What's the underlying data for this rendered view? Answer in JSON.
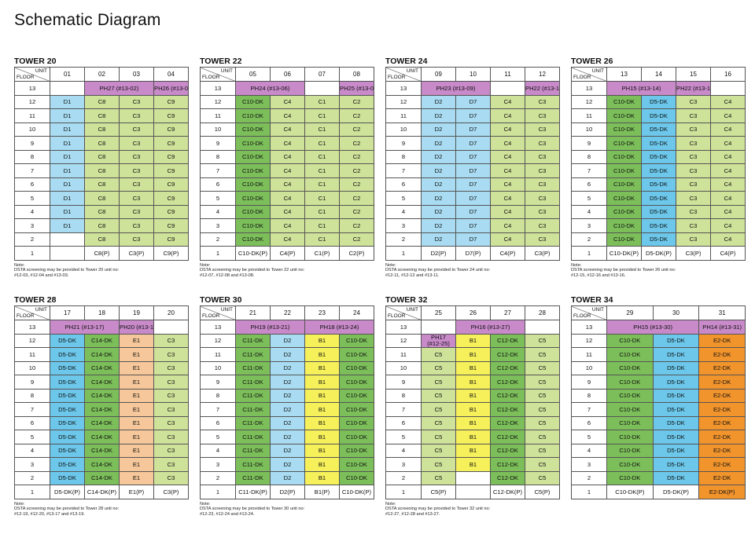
{
  "page_title": "Schematic Diagram",
  "labels": {
    "unit": "UNIT",
    "floor": "FLOOR"
  },
  "palette": {
    "green": "#cfe29a",
    "dgreen": "#7cbf5a",
    "blue": "#6cc7ea",
    "lblue": "#a9dcf2",
    "purple": "#c88ac9",
    "yellow": "#f6f05a",
    "peach": "#f6c79a",
    "orange": "#f2942c",
    "white": "#ffffff"
  },
  "towers": [
    {
      "title": "TOWER 20",
      "units": [
        "01",
        "02",
        "03",
        "04"
      ],
      "row13": [
        {
          "text": "",
          "span": 1,
          "color": "white"
        },
        {
          "text": "PH27 (#13-02)",
          "span": 2,
          "color": "purple"
        },
        {
          "text": "PH26 (#13-03)",
          "span": 1,
          "color": "purple"
        }
      ],
      "mid_colors": [
        "lblue",
        "green",
        "green",
        "green"
      ],
      "mid_text": [
        "D1",
        "C8",
        "C3",
        "C9"
      ],
      "row2": [
        {
          "text": "",
          "color": "white"
        },
        {
          "text": "C8",
          "color": "green"
        },
        {
          "text": "C3",
          "color": "green"
        },
        {
          "text": "C9",
          "color": "green"
        }
      ],
      "row1": [
        {
          "text": "",
          "color": "white"
        },
        {
          "text": "C8(P)",
          "color": "white"
        },
        {
          "text": "C3(P)",
          "color": "white"
        },
        {
          "text": "C9(P)",
          "color": "white"
        }
      ],
      "note": [
        "Note:",
        "DSTA screening may be provided to Tower 20 unit no:",
        "#12-03, #12-04 and #13-03."
      ]
    },
    {
      "title": "TOWER 22",
      "units": [
        "05",
        "06",
        "07",
        "08"
      ],
      "row13": [
        {
          "text": "PH24 (#13-06)",
          "span": 2,
          "color": "purple"
        },
        {
          "text": "",
          "span": 1,
          "color": "white"
        },
        {
          "text": "PH25 (#13-08)",
          "span": 1,
          "color": "purple"
        }
      ],
      "mid_colors": [
        "dgreen",
        "green",
        "green",
        "green"
      ],
      "mid_text": [
        "C10-DK",
        "C4",
        "C1",
        "C2"
      ],
      "row2": [
        {
          "text": "C10-DK",
          "color": "dgreen"
        },
        {
          "text": "C4",
          "color": "green"
        },
        {
          "text": "C1",
          "color": "green"
        },
        {
          "text": "C2",
          "color": "green"
        }
      ],
      "row1": [
        {
          "text": "C10-DK(P)",
          "color": "white"
        },
        {
          "text": "C4(P)",
          "color": "white"
        },
        {
          "text": "C1(P)",
          "color": "white"
        },
        {
          "text": "C2(P)",
          "color": "white"
        }
      ],
      "note": [
        "Note:",
        "DSTA screening may be provided to Tower 22 unit no:",
        "#12-07, #12-08 and #13-08."
      ]
    },
    {
      "title": "TOWER 24",
      "units": [
        "09",
        "10",
        "11",
        "12"
      ],
      "row13": [
        {
          "text": "PH23 (#13-09)",
          "span": 2,
          "color": "purple"
        },
        {
          "text": "",
          "span": 1,
          "color": "white"
        },
        {
          "text": "PH22 (#13-11)",
          "span": 1,
          "color": "purple"
        }
      ],
      "mid_colors": [
        "lblue",
        "lblue",
        "green",
        "green"
      ],
      "mid_text": [
        "D2",
        "D7",
        "C4",
        "C3"
      ],
      "row2": [
        {
          "text": "D2",
          "color": "lblue"
        },
        {
          "text": "D7",
          "color": "lblue"
        },
        {
          "text": "C4",
          "color": "green"
        },
        {
          "text": "C3",
          "color": "green"
        }
      ],
      "row1": [
        {
          "text": "D2(P)",
          "color": "white"
        },
        {
          "text": "D7(P)",
          "color": "white"
        },
        {
          "text": "C4(P)",
          "color": "white"
        },
        {
          "text": "C3(P)",
          "color": "white"
        }
      ],
      "note": [
        "Note:",
        "DSTA screening may be provided to Tower 24 unit no:",
        "#12-11, #12-12 and #13-11."
      ]
    },
    {
      "title": "TOWER 26",
      "units": [
        "13",
        "14",
        "15",
        "16"
      ],
      "row13": [
        {
          "text": "PH15 (#13-14)",
          "span": 2,
          "color": "purple"
        },
        {
          "text": "PH22 (#13-16)",
          "span": 1,
          "color": "purple"
        },
        {
          "text": "",
          "span": 1,
          "color": "white"
        }
      ],
      "mid_colors": [
        "dgreen",
        "blue",
        "green",
        "green"
      ],
      "mid_text": [
        "C10-DK",
        "D5-DK",
        "C3",
        "C4"
      ],
      "row2": [
        {
          "text": "C10-DK",
          "color": "dgreen"
        },
        {
          "text": "D5-DK",
          "color": "blue"
        },
        {
          "text": "C3",
          "color": "green"
        },
        {
          "text": "C4",
          "color": "green"
        }
      ],
      "row1": [
        {
          "text": "C10-DK(P)",
          "color": "white"
        },
        {
          "text": "D5-DK(P)",
          "color": "white"
        },
        {
          "text": "C3(P)",
          "color": "white"
        },
        {
          "text": "C4(P)",
          "color": "white"
        }
      ],
      "note": [
        "Note:",
        "DSTA screening may be provided to Tower 26 unit no:",
        "#12-15, #12-16 and #13-16."
      ]
    },
    {
      "title": "TOWER 28",
      "units": [
        "17",
        "18",
        "19",
        "20"
      ],
      "row13": [
        {
          "text": "PH21 (#13-17)",
          "span": 2,
          "color": "purple"
        },
        {
          "text": "PH20 (#13-19)",
          "span": 1,
          "color": "purple"
        },
        {
          "text": "",
          "span": 1,
          "color": "white"
        }
      ],
      "mid_colors": [
        "blue",
        "dgreen",
        "peach",
        "green"
      ],
      "mid_text": [
        "D5-DK",
        "C14-DK",
        "E1",
        "C3"
      ],
      "row2": [
        {
          "text": "D5-DK",
          "color": "blue"
        },
        {
          "text": "C14-DK",
          "color": "dgreen"
        },
        {
          "text": "E1",
          "color": "peach"
        },
        {
          "text": "C3",
          "color": "green"
        }
      ],
      "row1": [
        {
          "text": "D5-DK(P)",
          "color": "white"
        },
        {
          "text": "C14-DK(P)",
          "color": "white"
        },
        {
          "text": "E1(P)",
          "color": "white"
        },
        {
          "text": "C3(P)",
          "color": "white"
        }
      ],
      "note": [
        "Note:",
        "DSTA screening may be provided to Tower 28 unit no:",
        "#12-19, #12-20, #13-17 and #13-19."
      ]
    },
    {
      "title": "TOWER 30",
      "units": [
        "21",
        "22",
        "23",
        "24"
      ],
      "row13": [
        {
          "text": "PH19 (#13-21)",
          "span": 2,
          "color": "purple"
        },
        {
          "text": "PH18 (#13-24)",
          "span": 2,
          "color": "purple"
        }
      ],
      "mid_colors": [
        "dgreen",
        "lblue",
        "yellow",
        "dgreen"
      ],
      "mid_text": [
        "C11-DK",
        "D2",
        "B1",
        "C10-DK"
      ],
      "row2": [
        {
          "text": "C11-DK",
          "color": "dgreen"
        },
        {
          "text": "D2",
          "color": "lblue"
        },
        {
          "text": "B1",
          "color": "yellow"
        },
        {
          "text": "C10-DK",
          "color": "dgreen"
        }
      ],
      "row1": [
        {
          "text": "C11-DK(P)",
          "color": "white"
        },
        {
          "text": "D2(P)",
          "color": "white"
        },
        {
          "text": "B1(P)",
          "color": "white"
        },
        {
          "text": "C10-DK(P)",
          "color": "white"
        }
      ],
      "note": [
        "Note:",
        "DSTA screening may be provided to Tower 30 unit no:",
        "#12-23, #12-24 and #13-24."
      ]
    },
    {
      "title": "TOWER 32",
      "units": [
        "25",
        "26",
        "27",
        "28"
      ],
      "row13": [
        {
          "text": "",
          "span": 1,
          "color": "white"
        },
        {
          "text": "PH16 (#13-27)",
          "span": 2,
          "color": "purple"
        },
        {
          "text": "",
          "span": 1,
          "color": "white"
        }
      ],
      "ph17": "PH17\n(#12-25)",
      "mid_colors": [
        "green",
        "yellow",
        "dgreen",
        "green"
      ],
      "mid_text": [
        "C5",
        "B1",
        "C12-DK",
        "C5"
      ],
      "row2": [
        {
          "text": "C5",
          "color": "green"
        },
        {
          "text": "",
          "color": "white"
        },
        {
          "text": "C12-DK",
          "color": "dgreen"
        },
        {
          "text": "C5",
          "color": "green"
        }
      ],
      "row1": [
        {
          "text": "C5(P)",
          "color": "white"
        },
        {
          "text": "",
          "color": "white"
        },
        {
          "text": "C12-DK(P)",
          "color": "white"
        },
        {
          "text": "C5(P)",
          "color": "white"
        }
      ],
      "note": [
        "Note:",
        "DSTA screening may be provided to Tower 32 unit no:",
        "#12-27, #12-28 and #13-27."
      ]
    },
    {
      "title": "TOWER 34",
      "units": [
        "29",
        "30",
        "31"
      ],
      "row13": [
        {
          "text": "PH15 (#13-30)",
          "span": 2,
          "color": "purple"
        },
        {
          "text": "PH14 (#13-31)",
          "span": 1,
          "color": "purple"
        }
      ],
      "mid_colors": [
        "dgreen",
        "blue",
        "orange"
      ],
      "mid_text": [
        "C10-DK",
        "D5-DK",
        "E2-DK"
      ],
      "row2": [
        {
          "text": "C10-DK",
          "color": "dgreen"
        },
        {
          "text": "D5-DK",
          "color": "blue"
        },
        {
          "text": "E2-DK",
          "color": "orange"
        }
      ],
      "row1": [
        {
          "text": "C10-DK(P)",
          "color": "white"
        },
        {
          "text": "D5-DK(P)",
          "color": "white"
        },
        {
          "text": "E2-DK(P)",
          "color": "orange"
        }
      ],
      "note": []
    }
  ]
}
